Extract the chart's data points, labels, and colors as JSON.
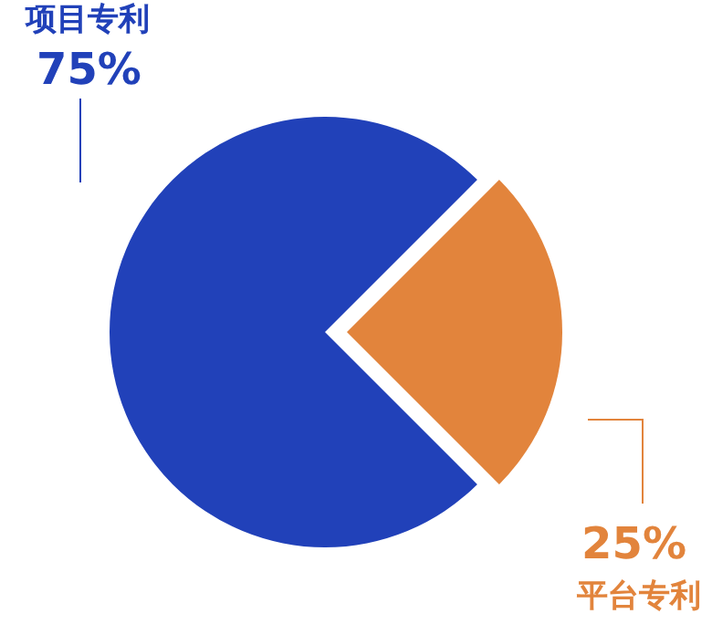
{
  "chart_data": {
    "type": "pie",
    "categories": [
      "项目专利",
      "平台专利"
    ],
    "values": [
      75,
      25
    ],
    "colors": [
      "#2141b9",
      "#e2843c"
    ],
    "value_labels": [
      "75%",
      "25%"
    ]
  }
}
